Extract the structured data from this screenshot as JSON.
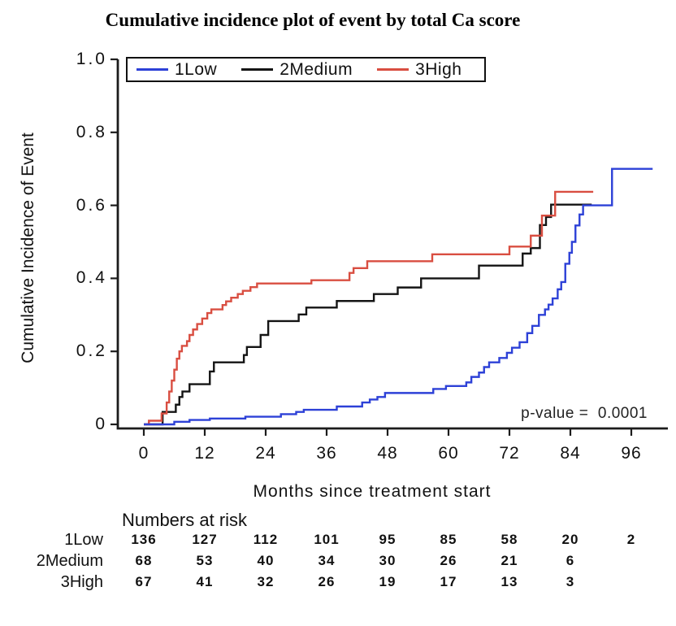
{
  "chart_data": {
    "type": "line",
    "subtype": "step-cumulative-incidence",
    "title": "Cumulative incidence plot of event by total Ca score",
    "xlabel": "Months since treatment start",
    "ylabel": "Cumulative Incidence of Event",
    "xlim": [
      0,
      104
    ],
    "ylim": [
      0,
      1.0
    ],
    "grid": false,
    "x_ticks": [
      0,
      12,
      24,
      36,
      48,
      60,
      72,
      84,
      96
    ],
    "y_ticks": [
      {
        "value": 1.0,
        "label": "1.0"
      },
      {
        "value": 0.8,
        "label": "0.8"
      },
      {
        "value": 0.6,
        "label": "0.6"
      },
      {
        "value": 0.4,
        "label": "0.4"
      },
      {
        "value": 0.2,
        "label": "0.2"
      },
      {
        "value": 0.0,
        "label": "0"
      }
    ],
    "legend": {
      "position": "top-left-inside",
      "items": [
        {
          "label": "1Low",
          "color": "#2D41D7"
        },
        {
          "label": "2Medium",
          "color": "#141414"
        },
        {
          "label": "3High",
          "color": "#D94E41"
        }
      ]
    },
    "annotation": {
      "text": "p-value =  0.0001"
    },
    "series": [
      {
        "name": "1Low",
        "color": "#2D41D7",
        "end_month": 100.2,
        "points": [
          [
            0,
            0
          ],
          [
            6,
            0.007
          ],
          [
            9,
            0.012
          ],
          [
            13,
            0.016
          ],
          [
            20,
            0.021
          ],
          [
            27,
            0.028
          ],
          [
            30,
            0.034
          ],
          [
            31.5,
            0.04
          ],
          [
            38,
            0.049
          ],
          [
            43,
            0.06
          ],
          [
            44.5,
            0.068
          ],
          [
            46,
            0.075
          ],
          [
            47.5,
            0.086
          ],
          [
            57,
            0.097
          ],
          [
            59.5,
            0.105
          ],
          [
            63.5,
            0.115
          ],
          [
            64.5,
            0.13
          ],
          [
            66,
            0.142
          ],
          [
            67,
            0.157
          ],
          [
            68,
            0.17
          ],
          [
            70,
            0.182
          ],
          [
            71.5,
            0.196
          ],
          [
            72.5,
            0.21
          ],
          [
            74,
            0.225
          ],
          [
            75.5,
            0.25
          ],
          [
            76.5,
            0.27
          ],
          [
            77.8,
            0.3
          ],
          [
            79,
            0.315
          ],
          [
            79.7,
            0.328
          ],
          [
            80.5,
            0.345
          ],
          [
            81.5,
            0.37
          ],
          [
            82.2,
            0.39
          ],
          [
            83,
            0.44
          ],
          [
            83.8,
            0.47
          ],
          [
            84.3,
            0.5
          ],
          [
            85,
            0.545
          ],
          [
            85.8,
            0.575
          ],
          [
            86.5,
            0.6
          ],
          [
            92.2,
            0.7
          ]
        ]
      },
      {
        "name": "2Medium",
        "color": "#141414",
        "end_month": 88.2,
        "points": [
          [
            0,
            0
          ],
          [
            3.7,
            0.034
          ],
          [
            6.3,
            0.054
          ],
          [
            7,
            0.075
          ],
          [
            7.6,
            0.09
          ],
          [
            9,
            0.11
          ],
          [
            13,
            0.145
          ],
          [
            13.8,
            0.17
          ],
          [
            19.7,
            0.19
          ],
          [
            20.3,
            0.212
          ],
          [
            23,
            0.245
          ],
          [
            24.5,
            0.283
          ],
          [
            30.5,
            0.301
          ],
          [
            32,
            0.32
          ],
          [
            38,
            0.338
          ],
          [
            45.3,
            0.357
          ],
          [
            50,
            0.375
          ],
          [
            54.6,
            0.4
          ],
          [
            66,
            0.435
          ],
          [
            74.6,
            0.468
          ],
          [
            76.2,
            0.483
          ],
          [
            78,
            0.546
          ],
          [
            79.2,
            0.568
          ],
          [
            80.2,
            0.602
          ]
        ]
      },
      {
        "name": "3High",
        "color": "#D94E41",
        "end_month": 88.5,
        "points": [
          [
            0,
            0
          ],
          [
            1,
            0.01
          ],
          [
            3.5,
            0.03
          ],
          [
            4.5,
            0.06
          ],
          [
            5,
            0.09
          ],
          [
            5.5,
            0.12
          ],
          [
            6,
            0.15
          ],
          [
            6.5,
            0.18
          ],
          [
            7,
            0.2
          ],
          [
            7.5,
            0.215
          ],
          [
            8.5,
            0.228
          ],
          [
            9,
            0.245
          ],
          [
            9.7,
            0.26
          ],
          [
            10.5,
            0.275
          ],
          [
            11.5,
            0.29
          ],
          [
            12.5,
            0.305
          ],
          [
            13.3,
            0.315
          ],
          [
            15.5,
            0.327
          ],
          [
            16.2,
            0.337
          ],
          [
            17.2,
            0.347
          ],
          [
            18.5,
            0.357
          ],
          [
            19.5,
            0.366
          ],
          [
            21,
            0.376
          ],
          [
            22.3,
            0.386
          ],
          [
            33,
            0.395
          ],
          [
            40.5,
            0.415
          ],
          [
            41.3,
            0.428
          ],
          [
            44,
            0.447
          ],
          [
            56.8,
            0.466
          ],
          [
            72,
            0.487
          ],
          [
            76.2,
            0.517
          ],
          [
            78.4,
            0.572
          ],
          [
            81,
            0.637
          ]
        ]
      }
    ]
  },
  "risk_table": {
    "header": "Numbers at risk",
    "time_points": [
      0,
      12,
      24,
      36,
      48,
      60,
      72,
      84,
      96
    ],
    "rows": [
      {
        "label": "1Low",
        "counts": [
          136,
          127,
          112,
          101,
          95,
          85,
          58,
          20,
          2
        ]
      },
      {
        "label": "2Medium",
        "counts": [
          68,
          53,
          40,
          34,
          30,
          26,
          21,
          6
        ]
      },
      {
        "label": "3High",
        "counts": [
          67,
          41,
          32,
          26,
          19,
          17,
          13,
          3
        ]
      }
    ]
  },
  "colors": {
    "axis": "#1c1c1c",
    "background": "#ffffff",
    "series_1low": "#2D41D7",
    "series_2medium": "#141414",
    "series_3high": "#D94E41"
  }
}
